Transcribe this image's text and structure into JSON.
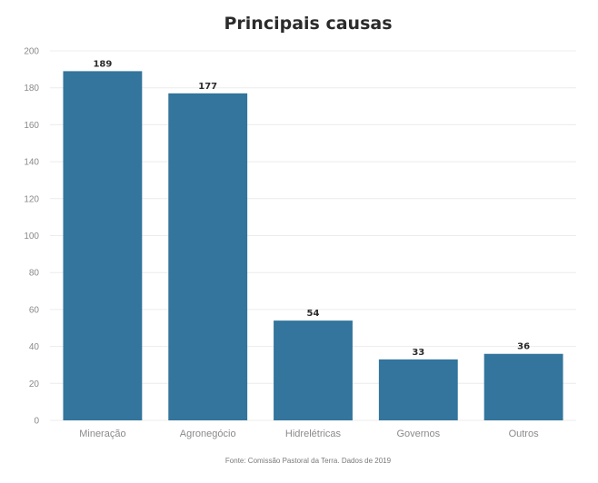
{
  "chart_data": {
    "type": "bar",
    "title": "Principais causas",
    "categories": [
      "Mineração",
      "Agronegócio",
      "Hidrelétricas",
      "Governos",
      "Outros"
    ],
    "values": [
      189,
      177,
      54,
      33,
      36
    ],
    "data_labels": [
      "189",
      "177",
      "54",
      "33",
      "36"
    ],
    "ylim": [
      0,
      200
    ],
    "yticks": [
      "0",
      "20",
      "40",
      "60",
      "80",
      "100",
      "120",
      "140",
      "160",
      "180",
      "200"
    ],
    "grid": true,
    "legend": "none",
    "bar_color": "#33759c",
    "source": "Fonte: Comissão Pastoral da Terra. Dados de 2019"
  }
}
